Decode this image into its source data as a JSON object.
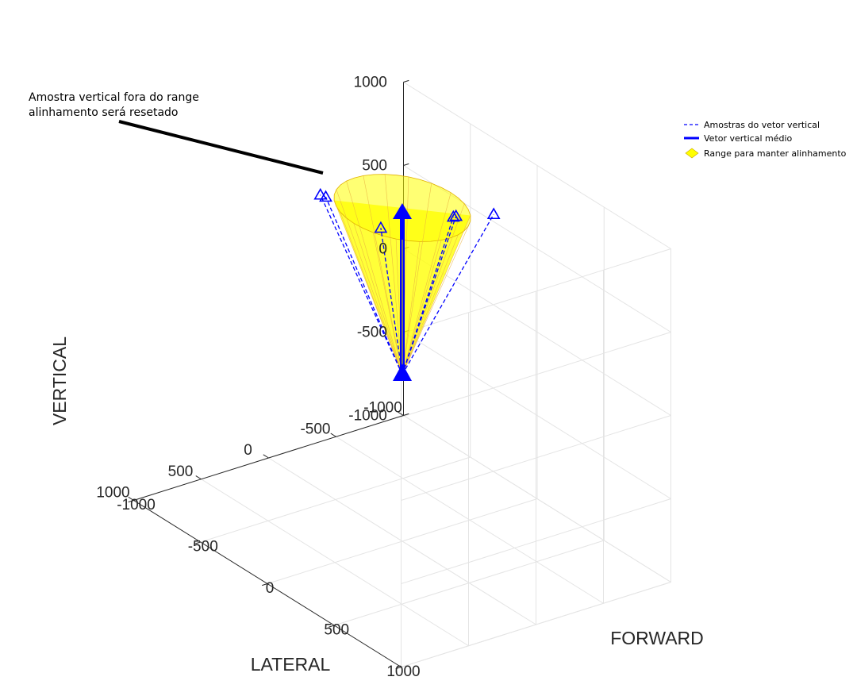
{
  "chart_data": {
    "type": "3d-line-surface",
    "xlabel": "LATERAL",
    "ylabel": "FORWARD",
    "zlabel": "VERTICAL",
    "xlim": [
      -1000,
      1000
    ],
    "ylim": [
      -1000,
      1000
    ],
    "zlim": [
      -1000,
      1000
    ],
    "x_ticks": [
      "-1000",
      "-500",
      "0",
      "500",
      "1000"
    ],
    "y_ticks": [
      "-1000",
      "-500",
      "0",
      "500",
      "1000"
    ],
    "z_ticks": [
      "-1000",
      "-500",
      "0",
      "500",
      "1000"
    ],
    "grid": true,
    "legend_position": "right",
    "legend": [
      {
        "label": "Amostras do vetor vertical",
        "style": "dashed-line",
        "color": "#0000ff"
      },
      {
        "label": "Vetor vertical médio",
        "style": "solid-line",
        "color": "#0000ff"
      },
      {
        "label": "Range para manter alinhamento",
        "style": "patch",
        "color": "#ffff00"
      }
    ],
    "origin": {
      "x": 0,
      "y": 0,
      "z": 0
    },
    "mean_vector": {
      "x": 0,
      "y": 0,
      "z": 1000
    },
    "samples": [
      {
        "x": -400,
        "y": 280,
        "z": 1000
      },
      {
        "x": -200,
        "y": 200,
        "z": 1000
      },
      {
        "x": -180,
        "y": 200,
        "z": 1000
      },
      {
        "x": 290,
        "y": -280,
        "z": 1000
      },
      {
        "x": 300,
        "y": -310,
        "z": 1000
      },
      {
        "x": 80,
        "y": -80,
        "z": 860
      }
    ],
    "cone": {
      "apex_z": 0,
      "top_z": 1000,
      "radius": 360,
      "color": "#ffff00"
    },
    "annotation": {
      "line1": "Amostra vertical fora do range",
      "line2": "alinhamento será resetado"
    }
  }
}
